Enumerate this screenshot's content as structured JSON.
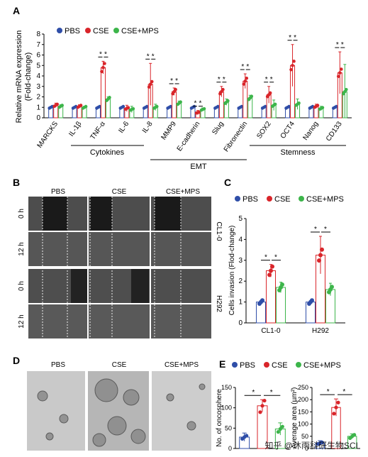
{
  "colors": {
    "pbs": "#2f4ea8",
    "cse": "#d9252a",
    "csemps": "#3cb54a",
    "axis": "#000000"
  },
  "panelA": {
    "letter": "A",
    "legend": [
      "PBS",
      "CSE",
      "CSE+MPS"
    ],
    "ylabel_line1": "Relative mRNA expression",
    "ylabel_line2": "(Fold-change)",
    "groups": [
      {
        "label": "Cytokines"
      },
      {
        "label": "EMT"
      },
      {
        "label": "Stemness"
      }
    ],
    "star": "*"
  },
  "panelB": {
    "letter": "B",
    "col_labels": [
      "PBS",
      "CSE",
      "CSE+MPS"
    ],
    "row_labels": [
      "0 h",
      "12 h",
      "0 h",
      "12 h"
    ],
    "cell_lines": [
      "CL1-0",
      "H292"
    ]
  },
  "panelC": {
    "letter": "C",
    "legend": [
      "PBS",
      "CSE",
      "CSE+MPS"
    ],
    "star": "*"
  },
  "panelD": {
    "letter": "D",
    "col_labels": [
      "PBS",
      "CSE",
      "CSE+MPS"
    ]
  },
  "panelE": {
    "letter": "E",
    "legend": [
      "PBS",
      "CSE",
      "CSE+MPS"
    ],
    "star": "*"
  },
  "watermark": "知乎 @沐雨科研生物SCI",
  "chart_data": [
    {
      "id": "A",
      "type": "bar",
      "ylabel": "Relative mRNA expression (Fold-change)",
      "ylim": [
        0,
        8
      ],
      "yticks": [
        0,
        1,
        2,
        3,
        4,
        5,
        6,
        7,
        8
      ],
      "categories": [
        "MARCKS",
        "IL-1β",
        "TNF-α",
        "IL-6",
        "IL-8",
        "MMP9",
        "E-cadherin",
        "Slug",
        "Fibronectin",
        "SOX2",
        "OCT4",
        "Nanog",
        "CD133"
      ],
      "series": [
        {
          "name": "PBS",
          "values": [
            1,
            1,
            1,
            1,
            1,
            1,
            1,
            1,
            1,
            1,
            1,
            1,
            1
          ],
          "err": [
            0,
            0,
            0,
            0,
            0,
            0,
            0,
            0,
            0,
            0,
            0,
            0,
            0
          ]
        },
        {
          "name": "CSE",
          "values": [
            1.2,
            1.1,
            4.8,
            0.9,
            3.2,
            2.5,
            0.5,
            2.5,
            3.5,
            2.2,
            5.0,
            1.1,
            4.3
          ],
          "err": [
            0.2,
            0.15,
            0.6,
            0.3,
            2.0,
            0.35,
            0.2,
            0.5,
            0.7,
            0.8,
            2.0,
            0.2,
            2.0
          ]
        },
        {
          "name": "CSE+MPS",
          "values": [
            1.1,
            1.0,
            1.8,
            0.8,
            1.0,
            1.4,
            0.8,
            1.5,
            1.9,
            1.2,
            1.3,
            0.9,
            2.5
          ],
          "err": [
            0.15,
            0.1,
            0.2,
            0.3,
            0.3,
            0.2,
            0.15,
            0.3,
            0.25,
            0.5,
            0.5,
            0.2,
            2.6
          ]
        }
      ],
      "groups": [
        {
          "label": "Cytokines",
          "categories": [
            "IL-1β",
            "TNF-α",
            "IL-6",
            "IL-8"
          ]
        },
        {
          "label": "EMT",
          "categories": [
            "MMP9",
            "E-cadherin",
            "Slug",
            "Fibronectin"
          ]
        },
        {
          "label": "Stemness",
          "categories": [
            "SOX2",
            "OCT4",
            "Nanog",
            "CD133"
          ]
        }
      ],
      "significance": [
        "TNF-α",
        "IL-8",
        "MMP9",
        "E-cadherin",
        "Slug",
        "Fibronectin",
        "SOX2",
        "OCT4",
        "CD133"
      ]
    },
    {
      "id": "C",
      "type": "bar",
      "ylabel": "Cells invasion (Flod-change)",
      "ylim": [
        0,
        5
      ],
      "yticks": [
        0,
        1,
        2,
        3,
        4,
        5
      ],
      "categories": [
        "CL1-0",
        "H292"
      ],
      "series": [
        {
          "name": "PBS",
          "values": [
            1,
            1
          ],
          "err": [
            0,
            0
          ]
        },
        {
          "name": "CSE",
          "values": [
            2.5,
            3.25
          ],
          "err": [
            0.3,
            0.9
          ]
        },
        {
          "name": "CSE+MPS",
          "values": [
            1.7,
            1.6
          ],
          "err": [
            0.25,
            0.3
          ]
        }
      ],
      "significance": [
        "CL1-0",
        "H292"
      ]
    },
    {
      "id": "E1",
      "type": "bar",
      "ylabel": "No. of oncosphere",
      "ylim": [
        0,
        150
      ],
      "yticks": [
        0,
        50,
        100,
        150
      ],
      "categories": [
        "PBS",
        "CSE",
        "CSE+MPS"
      ],
      "values": [
        28,
        105,
        48
      ],
      "err": [
        10,
        15,
        15
      ]
    },
    {
      "id": "E2",
      "type": "bar",
      "ylabel": "Average area (µm²)",
      "ylim": [
        0,
        250
      ],
      "yticks": [
        0,
        50,
        100,
        150,
        200,
        250
      ],
      "categories": [
        "PBS",
        "CSE",
        "CSE+MPS"
      ],
      "values": [
        22,
        168,
        50
      ],
      "err": [
        10,
        35,
        10
      ]
    }
  ]
}
